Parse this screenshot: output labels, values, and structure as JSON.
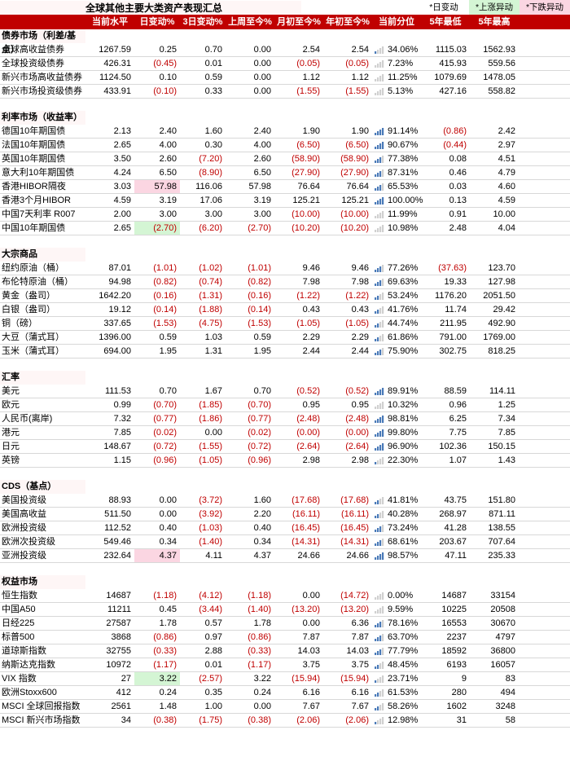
{
  "title": "全球其他主要大类资产表现汇总",
  "legend": {
    "day": "*日变动",
    "up": "*上涨异动",
    "down": "*下跌异动"
  },
  "headers": [
    "",
    "当前水平",
    "日变动%",
    "3日变动%",
    "上周至今%",
    "月初至今%",
    "年初至今%",
    "当前分位",
    "5年最低",
    "5年最高"
  ],
  "colors": {
    "header_bg": "#c00000",
    "neg": "#c00000",
    "up_bg": "#d4f5d4",
    "down_bg": "#fbd6e2"
  },
  "sections": [
    {
      "title": "债券市场（利差/基点）",
      "rows": [
        {
          "name": "全球高收益债券",
          "v": [
            "1267.59",
            "0.25",
            "0.70",
            "0.00",
            "2.54",
            "2.54"
          ],
          "neg": [
            0,
            0,
            0,
            0,
            0,
            0
          ],
          "pct": "34.06%",
          "low": "1115.03",
          "hi": "1562.93"
        },
        {
          "name": "全球投资级债券",
          "v": [
            "426.31",
            "(0.45)",
            "0.01",
            "0.00",
            "(0.05)",
            "(0.05)"
          ],
          "neg": [
            0,
            1,
            0,
            0,
            1,
            1
          ],
          "pct": "7.23%",
          "low": "415.93",
          "hi": "559.56"
        },
        {
          "name": "新兴市场高收益债券",
          "v": [
            "1124.50",
            "0.10",
            "0.59",
            "0.00",
            "1.12",
            "1.12"
          ],
          "neg": [
            0,
            0,
            0,
            0,
            0,
            0
          ],
          "pct": "11.25%",
          "low": "1079.69",
          "hi": "1478.05"
        },
        {
          "name": "新兴市场投资级债券",
          "v": [
            "433.91",
            "(0.10)",
            "0.33",
            "0.00",
            "(1.55)",
            "(1.55)"
          ],
          "neg": [
            0,
            1,
            0,
            0,
            1,
            1
          ],
          "pct": "5.13%",
          "low": "427.16",
          "hi": "558.82"
        }
      ]
    },
    {
      "title": "利率市场（收益率）",
      "rows": [
        {
          "name": "德国10年期国债",
          "v": [
            "2.13",
            "2.40",
            "1.60",
            "2.40",
            "1.90",
            "1.90"
          ],
          "neg": [
            0,
            0,
            0,
            0,
            0,
            0
          ],
          "pct": "91.14%",
          "low": "(0.86)",
          "hi": "2.42",
          "low_neg": 1
        },
        {
          "name": "法国10年期国债",
          "v": [
            "2.65",
            "4.00",
            "0.30",
            "4.00",
            "(6.50)",
            "(6.50)"
          ],
          "neg": [
            0,
            0,
            0,
            0,
            1,
            1
          ],
          "pct": "90.67%",
          "low": "(0.44)",
          "hi": "2.97",
          "low_neg": 1
        },
        {
          "name": "英国10年期国债",
          "v": [
            "3.50",
            "2.60",
            "(7.20)",
            "2.60",
            "(58.90)",
            "(58.90)"
          ],
          "neg": [
            0,
            0,
            1,
            0,
            1,
            1
          ],
          "pct": "77.38%",
          "low": "0.08",
          "hi": "4.51"
        },
        {
          "name": "意大利10年期国债",
          "v": [
            "4.24",
            "6.50",
            "(8.90)",
            "6.50",
            "(27.90)",
            "(27.90)"
          ],
          "neg": [
            0,
            0,
            1,
            0,
            1,
            1
          ],
          "pct": "87.31%",
          "low": "0.46",
          "hi": "4.79"
        },
        {
          "name": "香港HIBOR隔夜",
          "v": [
            "3.03",
            "57.98",
            "116.06",
            "57.98",
            "76.64",
            "76.64"
          ],
          "neg": [
            0,
            0,
            0,
            0,
            0,
            0
          ],
          "pct": "65.53%",
          "low": "0.03",
          "hi": "4.60",
          "hl": [
            0,
            2,
            0,
            0,
            0,
            0
          ]
        },
        {
          "name": "香港3个月HIBOR",
          "v": [
            "4.59",
            "3.19",
            "17.06",
            "3.19",
            "125.21",
            "125.21"
          ],
          "neg": [
            0,
            0,
            0,
            0,
            0,
            0
          ],
          "pct": "100.00%",
          "low": "0.13",
          "hi": "4.59"
        },
        {
          "name": "中国7天利率 R007",
          "v": [
            "2.00",
            "3.00",
            "3.00",
            "3.00",
            "(10.00)",
            "(10.00)"
          ],
          "neg": [
            0,
            0,
            0,
            0,
            1,
            1
          ],
          "pct": "11.99%",
          "low": "0.91",
          "hi": "10.00"
        },
        {
          "name": "中国10年期国债",
          "v": [
            "2.65",
            "(2.70)",
            "(6.20)",
            "(2.70)",
            "(10.20)",
            "(10.20)"
          ],
          "neg": [
            0,
            1,
            1,
            1,
            1,
            1
          ],
          "pct": "10.98%",
          "low": "2.48",
          "hi": "4.04",
          "hl": [
            0,
            1,
            0,
            0,
            0,
            0
          ]
        }
      ]
    },
    {
      "title": "大宗商品",
      "rows": [
        {
          "name": "纽约原油（桶）",
          "v": [
            "87.01",
            "(1.01)",
            "(1.02)",
            "(1.01)",
            "9.46",
            "9.46"
          ],
          "neg": [
            0,
            1,
            1,
            1,
            0,
            0
          ],
          "pct": "77.26%",
          "low": "(37.63)",
          "hi": "123.70",
          "low_neg": 1
        },
        {
          "name": "布伦特原油（桶）",
          "v": [
            "94.98",
            "(0.82)",
            "(0.74)",
            "(0.82)",
            "7.98",
            "7.98"
          ],
          "neg": [
            0,
            1,
            1,
            1,
            0,
            0
          ],
          "pct": "69.63%",
          "low": "19.33",
          "hi": "127.98"
        },
        {
          "name": "黄金（盎司）",
          "v": [
            "1642.20",
            "(0.16)",
            "(1.31)",
            "(0.16)",
            "(1.22)",
            "(1.22)"
          ],
          "neg": [
            0,
            1,
            1,
            1,
            1,
            1
          ],
          "pct": "53.24%",
          "low": "1176.20",
          "hi": "2051.50"
        },
        {
          "name": "白银（盎司）",
          "v": [
            "19.12",
            "(0.14)",
            "(1.88)",
            "(0.14)",
            "0.43",
            "0.43"
          ],
          "neg": [
            0,
            1,
            1,
            1,
            0,
            0
          ],
          "pct": "41.76%",
          "low": "11.74",
          "hi": "29.42"
        },
        {
          "name": "铜（磅）",
          "v": [
            "337.65",
            "(1.53)",
            "(4.75)",
            "(1.53)",
            "(1.05)",
            "(1.05)"
          ],
          "neg": [
            0,
            1,
            1,
            1,
            1,
            1
          ],
          "pct": "44.74%",
          "low": "211.95",
          "hi": "492.90"
        },
        {
          "name": "大豆（蒲式耳）",
          "v": [
            "1396.00",
            "0.59",
            "1.03",
            "0.59",
            "2.29",
            "2.29"
          ],
          "neg": [
            0,
            0,
            0,
            0,
            0,
            0
          ],
          "pct": "61.86%",
          "low": "791.00",
          "hi": "1769.00"
        },
        {
          "name": "玉米（蒲式耳）",
          "v": [
            "694.00",
            "1.95",
            "1.31",
            "1.95",
            "2.44",
            "2.44"
          ],
          "neg": [
            0,
            0,
            0,
            0,
            0,
            0
          ],
          "pct": "75.90%",
          "low": "302.75",
          "hi": "818.25"
        }
      ]
    },
    {
      "title": "汇率",
      "rows": [
        {
          "name": "美元",
          "v": [
            "111.53",
            "0.70",
            "1.67",
            "0.70",
            "(0.52)",
            "(0.52)"
          ],
          "neg": [
            0,
            0,
            0,
            0,
            1,
            1
          ],
          "pct": "89.91%",
          "low": "88.59",
          "hi": "114.11"
        },
        {
          "name": "欧元",
          "v": [
            "0.99",
            "(0.70)",
            "(1.85)",
            "(0.70)",
            "0.95",
            "0.95"
          ],
          "neg": [
            0,
            1,
            1,
            1,
            0,
            0
          ],
          "pct": "10.32%",
          "low": "0.96",
          "hi": "1.25"
        },
        {
          "name": "人民币(离岸)",
          "v": [
            "7.32",
            "(0.77)",
            "(1.86)",
            "(0.77)",
            "(2.48)",
            "(2.48)"
          ],
          "neg": [
            0,
            1,
            1,
            1,
            1,
            1
          ],
          "pct": "98.81%",
          "low": "6.25",
          "hi": "7.34"
        },
        {
          "name": "港元",
          "v": [
            "7.85",
            "(0.02)",
            "0.00",
            "(0.02)",
            "(0.00)",
            "(0.00)"
          ],
          "neg": [
            0,
            1,
            0,
            1,
            1,
            1
          ],
          "pct": "99.80%",
          "low": "7.75",
          "hi": "7.85"
        },
        {
          "name": "日元",
          "v": [
            "148.67",
            "(0.72)",
            "(1.55)",
            "(0.72)",
            "(2.64)",
            "(2.64)"
          ],
          "neg": [
            0,
            1,
            1,
            1,
            1,
            1
          ],
          "pct": "96.90%",
          "low": "102.36",
          "hi": "150.15"
        },
        {
          "name": "英镑",
          "v": [
            "1.15",
            "(0.96)",
            "(1.05)",
            "(0.96)",
            "2.98",
            "2.98"
          ],
          "neg": [
            0,
            1,
            1,
            1,
            0,
            0
          ],
          "pct": "22.30%",
          "low": "1.07",
          "hi": "1.43"
        }
      ]
    },
    {
      "title": "CDS（基点）",
      "rows": [
        {
          "name": "美国投资级",
          "v": [
            "88.93",
            "0.00",
            "(3.72)",
            "1.60",
            "(17.68)",
            "(17.68)"
          ],
          "neg": [
            0,
            0,
            1,
            0,
            1,
            1
          ],
          "pct": "41.81%",
          "low": "43.75",
          "hi": "151.80"
        },
        {
          "name": "美国高收益",
          "v": [
            "511.50",
            "0.00",
            "(3.92)",
            "2.20",
            "(16.11)",
            "(16.11)"
          ],
          "neg": [
            0,
            0,
            1,
            0,
            1,
            1
          ],
          "pct": "40.28%",
          "low": "268.97",
          "hi": "871.11"
        },
        {
          "name": "欧洲投资级",
          "v": [
            "112.52",
            "0.40",
            "(1.03)",
            "0.40",
            "(16.45)",
            "(16.45)"
          ],
          "neg": [
            0,
            0,
            1,
            0,
            1,
            1
          ],
          "pct": "73.24%",
          "low": "41.28",
          "hi": "138.55"
        },
        {
          "name": "欧洲次投资级",
          "v": [
            "549.46",
            "0.34",
            "(1.40)",
            "0.34",
            "(14.31)",
            "(14.31)"
          ],
          "neg": [
            0,
            0,
            1,
            0,
            1,
            1
          ],
          "pct": "68.61%",
          "low": "203.67",
          "hi": "707.64"
        },
        {
          "name": "亚洲投资级",
          "v": [
            "232.64",
            "4.37",
            "4.11",
            "4.37",
            "24.66",
            "24.66"
          ],
          "neg": [
            0,
            0,
            0,
            0,
            0,
            0
          ],
          "pct": "98.57%",
          "low": "47.11",
          "hi": "235.33",
          "hl": [
            0,
            2,
            0,
            0,
            0,
            0
          ]
        }
      ]
    },
    {
      "title": "权益市场",
      "rows": [
        {
          "name": "恒生指数",
          "v": [
            "14687",
            "(1.18)",
            "(4.12)",
            "(1.18)",
            "0.00",
            "(14.72)"
          ],
          "neg": [
            0,
            1,
            1,
            1,
            0,
            1
          ],
          "pct": "0.00%",
          "low": "14687",
          "hi": "33154"
        },
        {
          "name": "中国A50",
          "v": [
            "11211",
            "0.45",
            "(3.44)",
            "(1.40)",
            "(13.20)",
            "(13.20)"
          ],
          "neg": [
            0,
            0,
            1,
            1,
            1,
            1
          ],
          "pct": "9.59%",
          "low": "10225",
          "hi": "20508"
        },
        {
          "name": "日经225",
          "v": [
            "27587",
            "1.78",
            "0.57",
            "1.78",
            "0.00",
            "6.36"
          ],
          "neg": [
            0,
            0,
            0,
            0,
            0,
            0
          ],
          "pct": "78.16%",
          "low": "16553",
          "hi": "30670"
        },
        {
          "name": "标普500",
          "v": [
            "3868",
            "(0.86)",
            "0.97",
            "(0.86)",
            "7.87",
            "7.87"
          ],
          "neg": [
            0,
            1,
            0,
            1,
            0,
            0
          ],
          "pct": "63.70%",
          "low": "2237",
          "hi": "4797"
        },
        {
          "name": "道琼斯指数",
          "v": [
            "32755",
            "(0.33)",
            "2.88",
            "(0.33)",
            "14.03",
            "14.03"
          ],
          "neg": [
            0,
            1,
            0,
            1,
            0,
            0
          ],
          "pct": "77.79%",
          "low": "18592",
          "hi": "36800"
        },
        {
          "name": "纳斯达克指数",
          "v": [
            "10972",
            "(1.17)",
            "0.01",
            "(1.17)",
            "3.75",
            "3.75"
          ],
          "neg": [
            0,
            1,
            0,
            1,
            0,
            0
          ],
          "pct": "48.45%",
          "low": "6193",
          "hi": "16057"
        },
        {
          "name": "VIX 指数",
          "v": [
            "27",
            "3.22",
            "(2.57)",
            "3.22",
            "(15.94)",
            "(15.94)"
          ],
          "neg": [
            0,
            0,
            1,
            0,
            1,
            1
          ],
          "pct": "23.71%",
          "low": "9",
          "hi": "83",
          "hl": [
            0,
            1,
            0,
            0,
            0,
            0
          ]
        },
        {
          "name": "欧洲Stoxx600",
          "v": [
            "412",
            "0.24",
            "0.35",
            "0.24",
            "6.16",
            "6.16"
          ],
          "neg": [
            0,
            0,
            0,
            0,
            0,
            0
          ],
          "pct": "61.53%",
          "low": "280",
          "hi": "494"
        },
        {
          "name": "MSCI 全球回报指数",
          "v": [
            "2561",
            "1.48",
            "1.00",
            "0.00",
            "7.67",
            "7.67"
          ],
          "neg": [
            0,
            0,
            0,
            0,
            0,
            0
          ],
          "pct": "58.26%",
          "low": "1602",
          "hi": "3248"
        },
        {
          "name": "MSCI 新兴市场指数",
          "v": [
            "34",
            "(0.38)",
            "(1.75)",
            "(0.38)",
            "(2.06)",
            "(2.06)"
          ],
          "neg": [
            0,
            1,
            1,
            1,
            1,
            1
          ],
          "pct": "12.98%",
          "low": "31",
          "hi": "58"
        }
      ]
    }
  ]
}
